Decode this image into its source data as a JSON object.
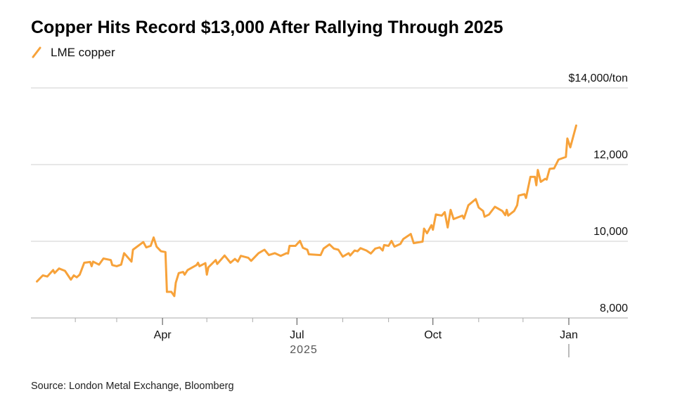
{
  "chart_data": {
    "type": "line",
    "title": "Copper Hits Record $13,000 After Rallying Through 2025",
    "legend": [
      {
        "name": "LME copper",
        "color": "#F7A23A"
      }
    ],
    "legend_placement": "top-left",
    "x_unit": "days since 2025-01-01",
    "xlim": [
      0,
      365
    ],
    "x_ticks": [
      {
        "day": 90,
        "label": "Apr"
      },
      {
        "day": 181,
        "label": "Jul"
      },
      {
        "day": 273,
        "label": "Oct"
      },
      {
        "day": 365,
        "label": "Jan"
      }
    ],
    "x_minor_ticks": [
      31,
      59,
      120,
      151,
      212,
      243,
      304,
      334
    ],
    "x_year_label": "2025",
    "ylabel": "$/ton",
    "ylim": [
      8000,
      14000
    ],
    "y_ticks": [
      {
        "value": 14000,
        "label": "$14,000/ton"
      },
      {
        "value": 12000,
        "label": "12,000"
      },
      {
        "value": 10000,
        "label": "10,000"
      },
      {
        "value": 8000,
        "label": "8,000"
      }
    ],
    "grid": true,
    "series": [
      {
        "name": "LME copper",
        "color": "#F7A23A",
        "x": [
          5,
          9,
          12,
          16,
          17,
          20,
          24,
          28,
          30,
          32,
          34,
          37,
          41,
          42,
          43,
          47,
          50,
          55,
          56,
          59,
          62,
          64,
          69,
          70,
          77,
          79,
          82,
          84,
          86,
          89,
          92,
          93,
          96,
          98,
          99,
          101,
          104,
          105,
          107,
          113,
          114,
          115,
          119,
          120,
          121,
          126,
          127,
          132,
          136,
          139,
          141,
          143,
          148,
          150,
          155,
          159,
          162,
          166,
          170,
          174,
          175,
          176,
          180,
          183,
          185,
          188,
          189,
          197,
          199,
          203,
          206,
          209,
          212,
          216,
          217,
          220,
          222,
          224,
          228,
          231,
          234,
          237,
          239,
          240,
          243,
          245,
          247,
          251,
          253,
          258,
          260,
          266,
          267,
          269,
          272,
          273,
          275,
          279,
          281,
          283,
          285,
          287,
          293,
          294,
          297,
          302,
          304,
          307,
          308,
          311,
          315,
          320,
          322,
          323,
          324,
          328,
          330,
          331,
          335,
          336,
          339,
          342,
          343,
          344,
          346,
          349,
          350,
          352,
          355,
          358,
          363,
          364,
          366,
          370
        ],
        "values": [
          8950,
          9110,
          9080,
          9250,
          9170,
          9290,
          9230,
          9000,
          9110,
          9060,
          9130,
          9440,
          9460,
          9350,
          9470,
          9390,
          9550,
          9510,
          9380,
          9350,
          9390,
          9690,
          9470,
          9780,
          9980,
          9840,
          9880,
          10100,
          9860,
          9740,
          9720,
          8680,
          8680,
          8570,
          8920,
          9170,
          9200,
          9130,
          9250,
          9380,
          9440,
          9350,
          9430,
          9130,
          9320,
          9510,
          9410,
          9630,
          9440,
          9540,
          9470,
          9620,
          9570,
          9490,
          9690,
          9780,
          9640,
          9690,
          9620,
          9690,
          9680,
          9880,
          9880,
          10010,
          9830,
          9780,
          9660,
          9640,
          9810,
          9920,
          9810,
          9780,
          9600,
          9690,
          9630,
          9760,
          9740,
          9820,
          9760,
          9680,
          9810,
          9840,
          9760,
          9900,
          9880,
          10010,
          9860,
          9930,
          10060,
          10190,
          9950,
          9990,
          10330,
          10210,
          10420,
          10300,
          10700,
          10670,
          10760,
          10360,
          10820,
          10580,
          10670,
          10590,
          10940,
          11100,
          10880,
          10790,
          10640,
          10700,
          10900,
          10790,
          10680,
          10820,
          10670,
          10790,
          10940,
          11190,
          11230,
          11130,
          11680,
          11680,
          11460,
          11860,
          11550,
          11630,
          11610,
          11890,
          11900,
          12130,
          12200,
          12680,
          12450,
          13020
        ]
      }
    ],
    "source": "Source: London Metal Exchange, Bloomberg"
  }
}
